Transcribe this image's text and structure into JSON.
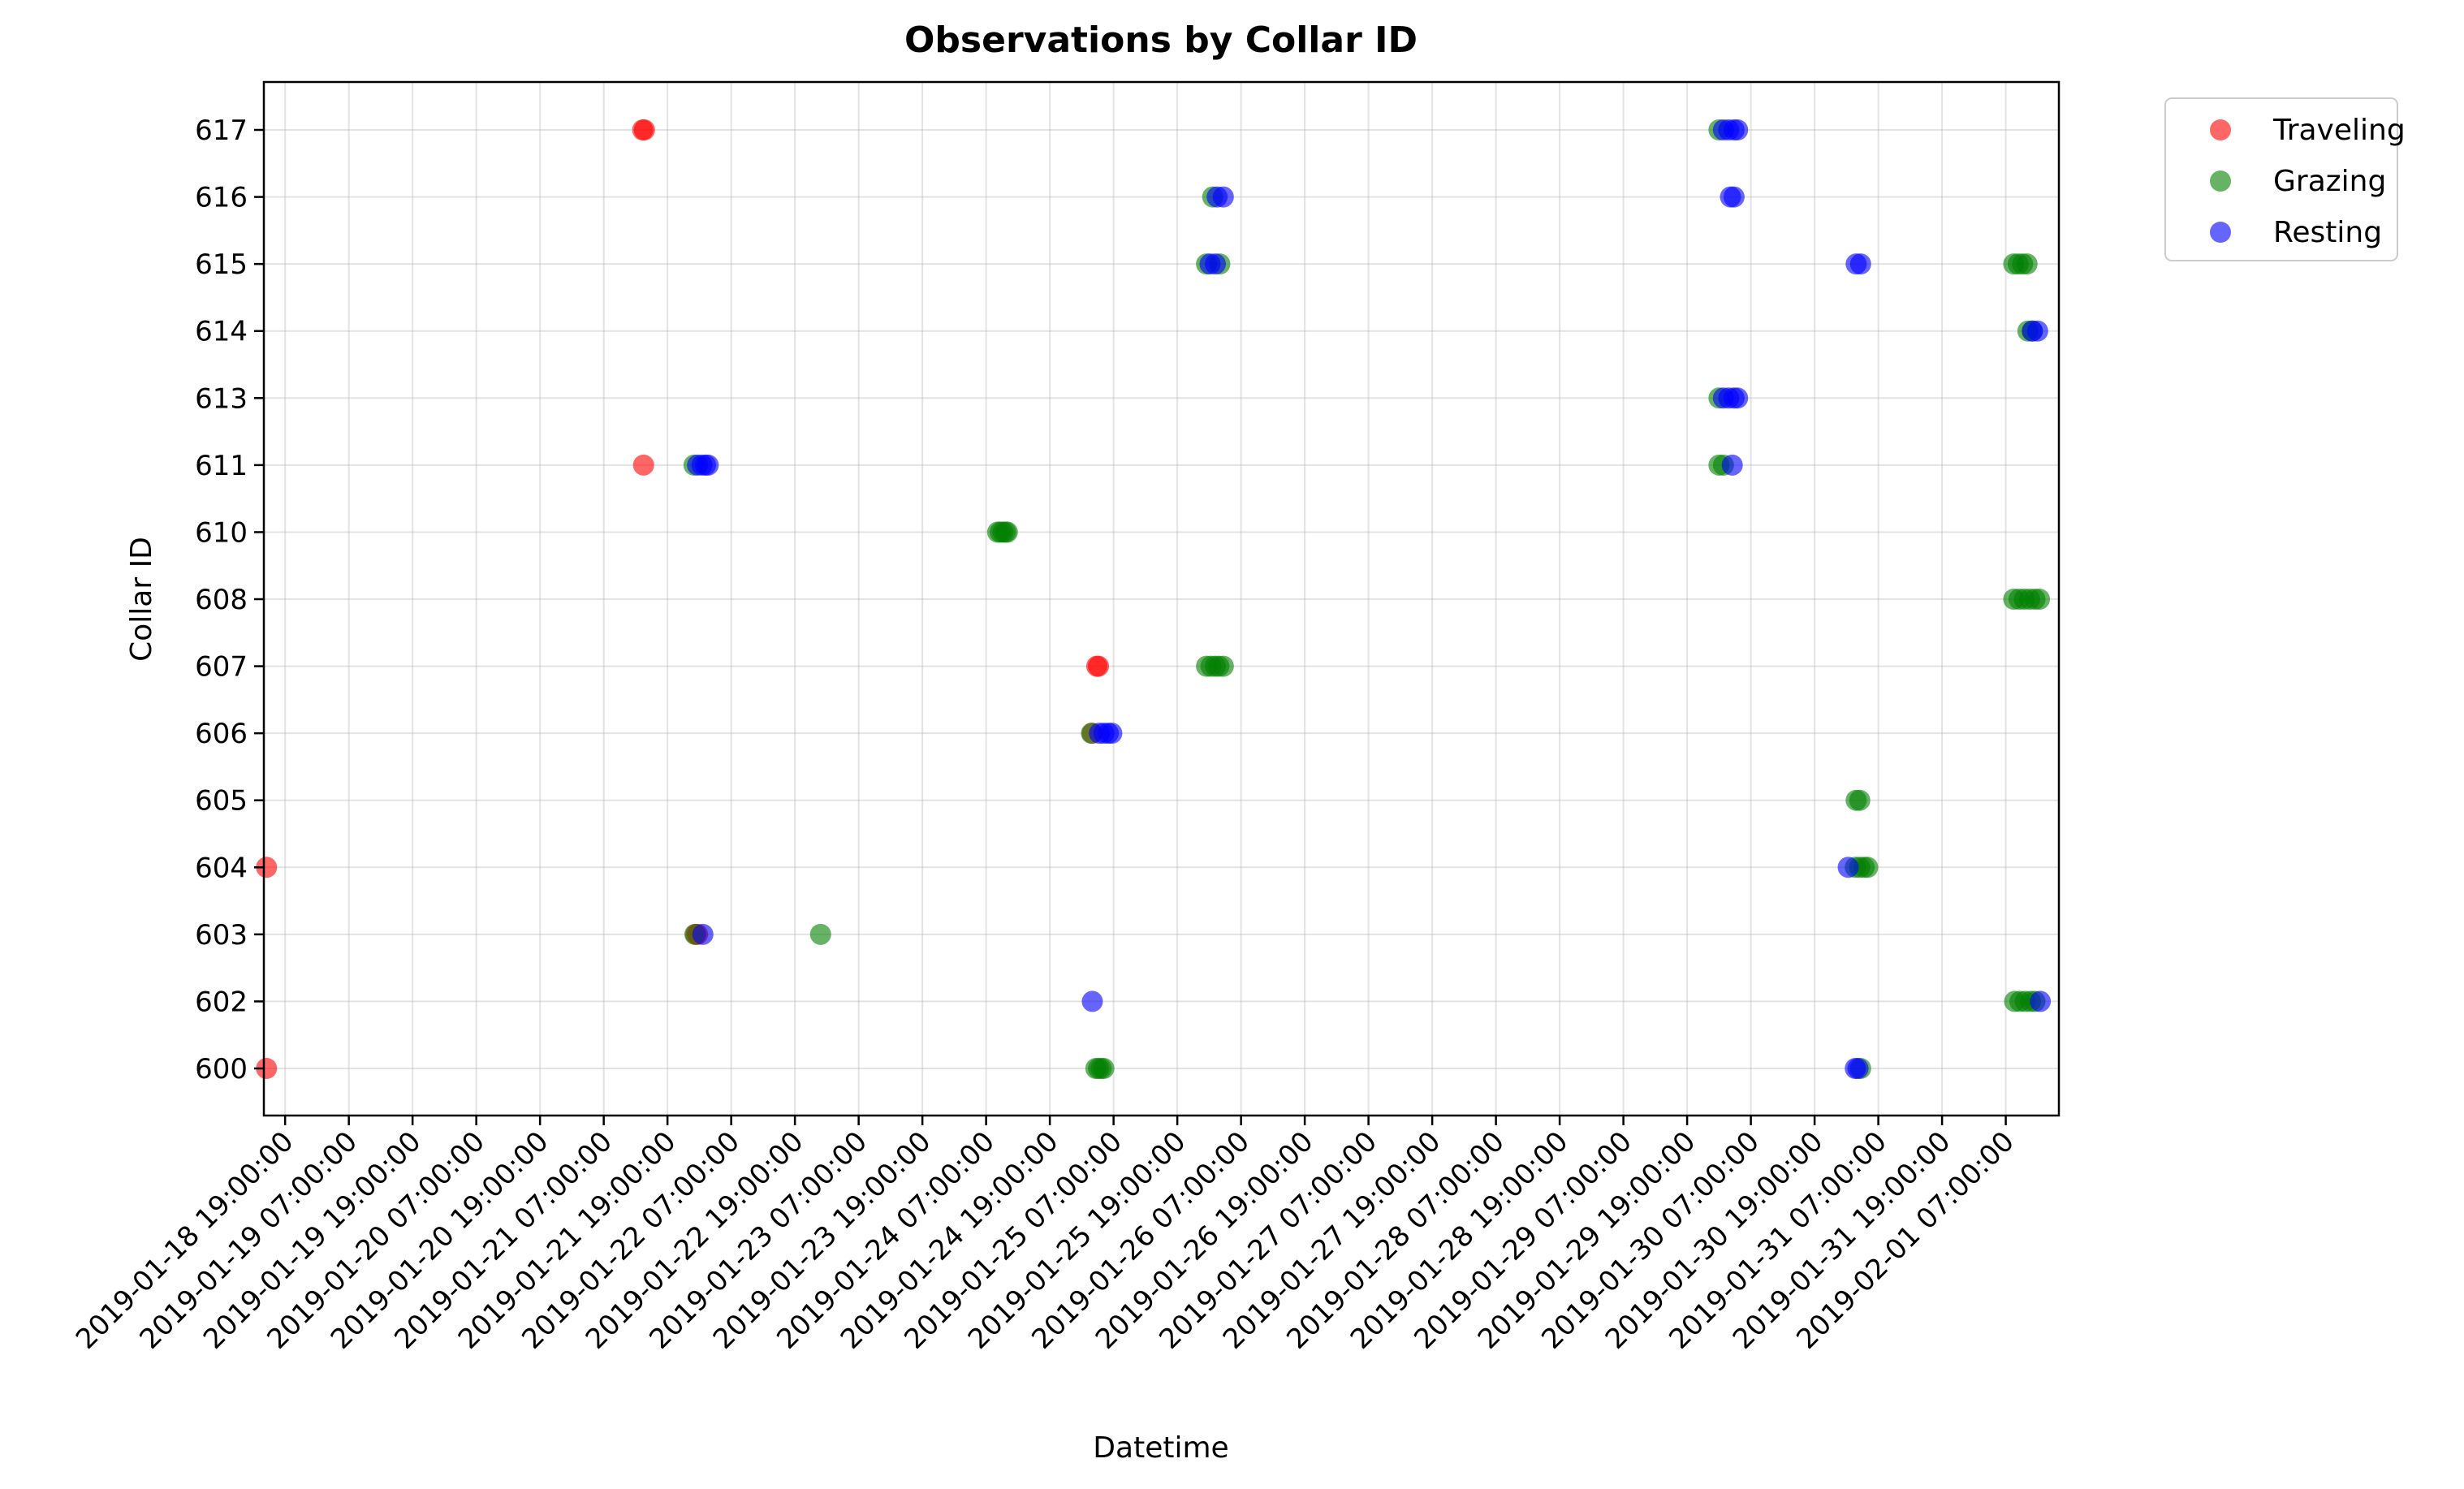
{
  "chart_data": {
    "type": "scatter",
    "title": "Observations by Collar ID",
    "xlabel": "Datetime",
    "ylabel": "Collar ID",
    "x_tick_labels": [
      "2019-01-18 19:00:00",
      "2019-01-19 07:00:00",
      "2019-01-19 19:00:00",
      "2019-01-20 07:00:00",
      "2019-01-20 19:00:00",
      "2019-01-21 07:00:00",
      "2019-01-21 19:00:00",
      "2019-01-22 07:00:00",
      "2019-01-22 19:00:00",
      "2019-01-23 07:00:00",
      "2019-01-23 19:00:00",
      "2019-01-24 07:00:00",
      "2019-01-24 19:00:00",
      "2019-01-25 07:00:00",
      "2019-01-25 19:00:00",
      "2019-01-26 07:00:00",
      "2019-01-26 19:00:00",
      "2019-01-27 07:00:00",
      "2019-01-27 19:00:00",
      "2019-01-28 07:00:00",
      "2019-01-28 19:00:00",
      "2019-01-29 07:00:00",
      "2019-01-29 19:00:00",
      "2019-01-30 07:00:00",
      "2019-01-30 19:00:00",
      "2019-01-31 07:00:00",
      "2019-01-31 19:00:00",
      "2019-02-01 07:00:00"
    ],
    "y_categories": [
      "600",
      "602",
      "603",
      "604",
      "605",
      "606",
      "607",
      "608",
      "610",
      "611",
      "613",
      "614",
      "615",
      "616",
      "617"
    ],
    "xlim": [
      "2019-01-18 15:00",
      "2019-02-01 17:00"
    ],
    "grid": true,
    "legend_position": "outside upper right",
    "series": [
      {
        "name": "Traveling",
        "color": "#ff0000",
        "points": [
          {
            "x": "2019-01-18 15:30",
            "y": "600"
          },
          {
            "x": "2019-01-18 15:30",
            "y": "604"
          },
          {
            "x": "2019-01-21 14:20",
            "y": "617"
          },
          {
            "x": "2019-01-21 14:40",
            "y": "617"
          },
          {
            "x": "2019-01-21 14:30",
            "y": "611"
          },
          {
            "x": "2019-01-22 00:20",
            "y": "603"
          },
          {
            "x": "2019-01-22 00:40",
            "y": "603"
          },
          {
            "x": "2019-01-25 03:50",
            "y": "607"
          },
          {
            "x": "2019-01-25 04:10",
            "y": "607"
          },
          {
            "x": "2019-01-25 03:00",
            "y": "606"
          }
        ]
      },
      {
        "name": "Grazing",
        "color": "#008000",
        "points": [
          {
            "x": "2019-01-22 00:00",
            "y": "611"
          },
          {
            "x": "2019-01-22 23:50",
            "y": "603"
          },
          {
            "x": "2019-01-22 00:10",
            "y": "603"
          },
          {
            "x": "2019-01-24 09:10",
            "y": "610"
          },
          {
            "x": "2019-01-24 09:40",
            "y": "610"
          },
          {
            "x": "2019-01-24 10:10",
            "y": "610"
          },
          {
            "x": "2019-01-24 10:40",
            "y": "610"
          },
          {
            "x": "2019-01-24 11:00",
            "y": "610"
          },
          {
            "x": "2019-01-25 02:50",
            "y": "606"
          },
          {
            "x": "2019-01-25 03:40",
            "y": "600"
          },
          {
            "x": "2019-01-25 04:10",
            "y": "600"
          },
          {
            "x": "2019-01-25 04:40",
            "y": "600"
          },
          {
            "x": "2019-01-25 05:10",
            "y": "600"
          },
          {
            "x": "2019-01-26 01:40",
            "y": "616"
          },
          {
            "x": "2019-01-26 00:30",
            "y": "615"
          },
          {
            "x": "2019-01-26 03:00",
            "y": "615"
          },
          {
            "x": "2019-01-26 00:30",
            "y": "607"
          },
          {
            "x": "2019-01-26 01:20",
            "y": "607"
          },
          {
            "x": "2019-01-26 02:10",
            "y": "607"
          },
          {
            "x": "2019-01-26 02:50",
            "y": "607"
          },
          {
            "x": "2019-01-26 03:40",
            "y": "607"
          },
          {
            "x": "2019-01-30 01:00",
            "y": "617"
          },
          {
            "x": "2019-01-30 01:00",
            "y": "613"
          },
          {
            "x": "2019-01-30 01:00",
            "y": "611"
          },
          {
            "x": "2019-01-30 01:50",
            "y": "611"
          },
          {
            "x": "2019-01-31 02:50",
            "y": "605"
          },
          {
            "x": "2019-01-31 03:30",
            "y": "605"
          },
          {
            "x": "2019-01-31 02:40",
            "y": "604"
          },
          {
            "x": "2019-01-31 03:30",
            "y": "604"
          },
          {
            "x": "2019-01-31 04:20",
            "y": "604"
          },
          {
            "x": "2019-01-31 05:00",
            "y": "604"
          },
          {
            "x": "2019-01-31 03:40",
            "y": "600"
          },
          {
            "x": "2019-02-01 08:30",
            "y": "615"
          },
          {
            "x": "2019-02-01 09:20",
            "y": "615"
          },
          {
            "x": "2019-02-01 10:10",
            "y": "615"
          },
          {
            "x": "2019-02-01 11:00",
            "y": "615"
          },
          {
            "x": "2019-02-01 11:10",
            "y": "614"
          },
          {
            "x": "2019-02-01 12:00",
            "y": "614"
          },
          {
            "x": "2019-02-01 08:30",
            "y": "608"
          },
          {
            "x": "2019-02-01 09:30",
            "y": "608"
          },
          {
            "x": "2019-02-01 10:30",
            "y": "608"
          },
          {
            "x": "2019-02-01 11:30",
            "y": "608"
          },
          {
            "x": "2019-02-01 12:30",
            "y": "608"
          },
          {
            "x": "2019-02-01 13:20",
            "y": "608"
          },
          {
            "x": "2019-02-01 08:40",
            "y": "602"
          },
          {
            "x": "2019-02-01 09:40",
            "y": "602"
          },
          {
            "x": "2019-02-01 10:40",
            "y": "602"
          },
          {
            "x": "2019-02-01 11:40",
            "y": "602"
          },
          {
            "x": "2019-02-01 12:30",
            "y": "602"
          }
        ]
      },
      {
        "name": "Resting",
        "color": "#0000ff",
        "points": [
          {
            "x": "2019-01-22 00:40",
            "y": "611"
          },
          {
            "x": "2019-01-22 01:30",
            "y": "611"
          },
          {
            "x": "2019-01-22 02:10",
            "y": "611"
          },
          {
            "x": "2019-01-22 02:40",
            "y": "611"
          },
          {
            "x": "2019-01-22 01:40",
            "y": "603"
          },
          {
            "x": "2019-01-25 03:00",
            "y": "602"
          },
          {
            "x": "2019-01-25 04:20",
            "y": "606"
          },
          {
            "x": "2019-01-25 05:10",
            "y": "606"
          },
          {
            "x": "2019-01-25 06:00",
            "y": "606"
          },
          {
            "x": "2019-01-25 06:40",
            "y": "606"
          },
          {
            "x": "2019-01-26 02:30",
            "y": "616"
          },
          {
            "x": "2019-01-26 03:40",
            "y": "616"
          },
          {
            "x": "2019-01-26 01:10",
            "y": "615"
          },
          {
            "x": "2019-01-26 02:10",
            "y": "615"
          },
          {
            "x": "2019-01-30 01:50",
            "y": "617"
          },
          {
            "x": "2019-01-30 02:50",
            "y": "617"
          },
          {
            "x": "2019-01-30 03:50",
            "y": "617"
          },
          {
            "x": "2019-01-30 04:30",
            "y": "617"
          },
          {
            "x": "2019-01-30 03:10",
            "y": "616"
          },
          {
            "x": "2019-01-30 03:50",
            "y": "616"
          },
          {
            "x": "2019-01-30 01:50",
            "y": "613"
          },
          {
            "x": "2019-01-30 02:50",
            "y": "613"
          },
          {
            "x": "2019-01-30 03:50",
            "y": "613"
          },
          {
            "x": "2019-01-30 04:30",
            "y": "613"
          },
          {
            "x": "2019-01-30 03:30",
            "y": "611"
          },
          {
            "x": "2019-01-31 02:50",
            "y": "615"
          },
          {
            "x": "2019-01-31 03:40",
            "y": "615"
          },
          {
            "x": "2019-01-31 01:20",
            "y": "604"
          },
          {
            "x": "2019-01-31 02:40",
            "y": "600"
          },
          {
            "x": "2019-01-31 03:10",
            "y": "600"
          },
          {
            "x": "2019-02-01 12:00",
            "y": "614"
          },
          {
            "x": "2019-02-01 13:00",
            "y": "614"
          },
          {
            "x": "2019-02-01 13:30",
            "y": "602"
          }
        ]
      }
    ]
  }
}
